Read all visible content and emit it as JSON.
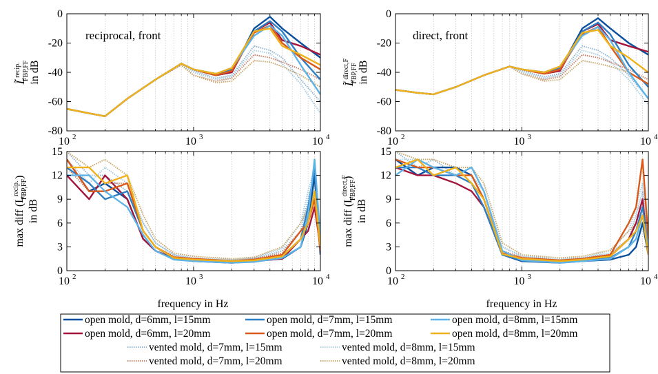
{
  "series_styles": [
    {
      "name": "open mold, d=6mm, l=15mm",
      "color": "#0b4f9c",
      "dash": "solid"
    },
    {
      "name": "open mold, d=7mm, l=15mm",
      "color": "#2f7fc4",
      "dash": "solid"
    },
    {
      "name": "open mold, d=8mm, l=15mm",
      "color": "#5fb3e6",
      "dash": "solid"
    },
    {
      "name": "open mold, d=6mm, l=20mm",
      "color": "#a3153b",
      "dash": "solid"
    },
    {
      "name": "open mold, d=7mm, l=20mm",
      "color": "#d95a1a",
      "dash": "solid"
    },
    {
      "name": "open mold, d=8mm, l=20mm",
      "color": "#f0b21c",
      "dash": "solid"
    },
    {
      "name": "vented mold, d=7mm, l=15mm",
      "color": "#8fb3d1",
      "dash": "dotted"
    },
    {
      "name": "vented mold, d=8mm, l=15mm",
      "color": "#a9cce3",
      "dash": "dotted"
    },
    {
      "name": "vented mold, d=7mm, l=20mm",
      "color": "#c9826b",
      "dash": "dotted"
    },
    {
      "name": "vented mold, d=8mm, l=20mm",
      "color": "#c9a86b",
      "dash": "dotted"
    }
  ],
  "legend_order": [
    0,
    1,
    2,
    3,
    4,
    5,
    6,
    7,
    8,
    9
  ],
  "xlabel": "frequency in Hz",
  "x_ticks": [
    {
      "v": 100,
      "base": "10",
      "exp": "2"
    },
    {
      "v": 1000,
      "base": "10",
      "exp": "3"
    },
    {
      "v": 10000,
      "base": "10",
      "exp": "4"
    }
  ],
  "chart_data": [
    {
      "type": "line",
      "id": "top-left",
      "xscale": "log",
      "xlim": [
        100,
        10000
      ],
      "ylim": [
        -80,
        0
      ],
      "yticks": [
        "0",
        "-20",
        "-40",
        "-60",
        "-80"
      ],
      "annotation": "reciprocal, front",
      "ylabel_line1": "L̃",
      "ylabel_sup": "recip.",
      "ylabel_sub": "FBP,FF",
      "ylabel_line2": "in dB",
      "x": [
        100,
        150,
        200,
        300,
        500,
        800,
        1000,
        1500,
        2000,
        3000,
        4000,
        5000,
        7000,
        10000
      ],
      "series": [
        {
          "values": [
            -65,
            -68,
            -70,
            -58,
            -45,
            -34,
            -38,
            -42,
            -40,
            -10,
            -2,
            -10,
            -20,
            -30
          ]
        },
        {
          "values": [
            -65,
            -68,
            -70,
            -58,
            -45,
            -34,
            -38,
            -41,
            -38,
            -12,
            -5,
            -12,
            -30,
            -45
          ]
        },
        {
          "values": [
            -65,
            -68,
            -70,
            -58,
            -45,
            -34,
            -38,
            -41,
            -37,
            -15,
            -8,
            -15,
            -35,
            -55
          ]
        },
        {
          "values": [
            -65,
            -68,
            -70,
            -58,
            -45,
            -34,
            -38,
            -42,
            -40,
            -12,
            -6,
            -18,
            -22,
            -28
          ]
        },
        {
          "values": [
            -65,
            -68,
            -70,
            -58,
            -45,
            -34,
            -38,
            -42,
            -39,
            -13,
            -8,
            -20,
            -30,
            -38
          ]
        },
        {
          "values": [
            -65,
            -68,
            -70,
            -58,
            -45,
            -34,
            -38,
            -41,
            -37,
            -12,
            -10,
            -22,
            -28,
            -35
          ]
        },
        {
          "values": [
            -65,
            -68,
            -70,
            -58,
            -45,
            -35,
            -39,
            -44,
            -42,
            -22,
            -25,
            -30,
            -45,
            -60
          ]
        },
        {
          "values": [
            -65,
            -68,
            -70,
            -58,
            -45,
            -35,
            -40,
            -45,
            -43,
            -25,
            -27,
            -34,
            -48,
            -68
          ]
        },
        {
          "values": [
            -65,
            -68,
            -70,
            -58,
            -45,
            -35,
            -42,
            -46,
            -44,
            -28,
            -30,
            -33,
            -38,
            -45
          ]
        },
        {
          "values": [
            -65,
            -68,
            -70,
            -58,
            -45,
            -35,
            -42,
            -47,
            -46,
            -32,
            -33,
            -36,
            -42,
            -50
          ]
        }
      ]
    },
    {
      "type": "line",
      "id": "top-right",
      "xscale": "log",
      "xlim": [
        100,
        10000
      ],
      "ylim": [
        -80,
        0
      ],
      "yticks": [
        "0",
        "-20",
        "-40",
        "-60",
        "-80"
      ],
      "annotation": "direct, front",
      "ylabel_line1": "L̃",
      "ylabel_sup": "direct,F",
      "ylabel_sub": "FBP,FF",
      "ylabel_line2": "in dB",
      "x": [
        100,
        150,
        200,
        300,
        500,
        800,
        1000,
        1500,
        2000,
        3000,
        4000,
        5000,
        7000,
        10000
      ],
      "series": [
        {
          "values": [
            -52,
            -54,
            -55,
            -50,
            -42,
            -36,
            -38,
            -40,
            -38,
            -10,
            -3,
            -10,
            -20,
            -28
          ]
        },
        {
          "values": [
            -52,
            -54,
            -55,
            -50,
            -42,
            -36,
            -38,
            -40,
            -37,
            -12,
            -6,
            -14,
            -35,
            -50
          ]
        },
        {
          "values": [
            -52,
            -54,
            -55,
            -50,
            -42,
            -36,
            -38,
            -40,
            -36,
            -15,
            -9,
            -18,
            -40,
            -58
          ]
        },
        {
          "values": [
            -52,
            -54,
            -55,
            -50,
            -42,
            -36,
            -38,
            -41,
            -39,
            -12,
            -7,
            -18,
            -22,
            -26
          ]
        },
        {
          "values": [
            -52,
            -54,
            -55,
            -50,
            -42,
            -36,
            -38,
            -41,
            -38,
            -14,
            -9,
            -22,
            -40,
            -48
          ]
        },
        {
          "values": [
            -52,
            -54,
            -55,
            -50,
            -42,
            -36,
            -38,
            -40,
            -36,
            -13,
            -11,
            -22,
            -30,
            -40
          ]
        },
        {
          "values": [
            -52,
            -54,
            -55,
            -50,
            -42,
            -36,
            -39,
            -43,
            -41,
            -22,
            -25,
            -30,
            -42,
            -58
          ]
        },
        {
          "values": [
            -52,
            -54,
            -55,
            -50,
            -42,
            -36,
            -40,
            -44,
            -42,
            -25,
            -28,
            -33,
            -45,
            -62
          ]
        },
        {
          "values": [
            -52,
            -54,
            -55,
            -50,
            -42,
            -36,
            -41,
            -45,
            -43,
            -28,
            -30,
            -33,
            -38,
            -45
          ]
        },
        {
          "values": [
            -52,
            -54,
            -55,
            -50,
            -42,
            -36,
            -41,
            -46,
            -45,
            -32,
            -34,
            -36,
            -40,
            -48
          ]
        }
      ]
    },
    {
      "type": "line",
      "id": "bottom-left",
      "xscale": "log",
      "xlim": [
        100,
        10000
      ],
      "ylim": [
        0,
        15
      ],
      "yticks": [
        "15",
        "12",
        "9",
        "6",
        "3",
        "0"
      ],
      "annotation": "",
      "ylabel_pre": "max diff (L",
      "ylabel_sup": "recip.",
      "ylabel_sub": "FBP,FF",
      "ylabel_post": ")",
      "ylabel_line2": "in dB",
      "x": [
        100,
        150,
        200,
        300,
        400,
        500,
        700,
        1000,
        2000,
        3000,
        5000,
        7000,
        8000,
        9000,
        10000
      ],
      "series": [
        {
          "values": [
            14,
            10,
            11,
            9,
            4,
            2.5,
            1.5,
            1.2,
            1.0,
            1.2,
            1.5,
            3,
            6,
            12,
            2
          ]
        },
        {
          "values": [
            13,
            11,
            9,
            10,
            5,
            3,
            1.5,
            1.3,
            1.1,
            1.3,
            1.8,
            4,
            8,
            13,
            3
          ]
        },
        {
          "values": [
            12,
            12,
            10,
            8,
            4.5,
            2.5,
            1.4,
            1.2,
            1.0,
            1.1,
            1.6,
            3,
            7,
            14,
            4
          ]
        },
        {
          "values": [
            12,
            9,
            12,
            9,
            4,
            2.5,
            1.6,
            1.3,
            1.0,
            1.2,
            1.5,
            4,
            5,
            8,
            3
          ]
        },
        {
          "values": [
            14,
            10,
            10,
            11,
            5,
            3,
            1.7,
            1.5,
            1.2,
            1.4,
            2.0,
            5,
            6,
            9,
            2.5
          ]
        },
        {
          "values": [
            13,
            13,
            11,
            12,
            5,
            3,
            1.6,
            1.4,
            1.2,
            1.3,
            1.8,
            4,
            6,
            10,
            3
          ]
        },
        {
          "values": [
            15,
            12,
            12,
            10,
            6,
            3.5,
            2,
            1.5,
            1.3,
            1.5,
            2.5,
            5,
            9,
            12,
            4
          ]
        },
        {
          "values": [
            14,
            11,
            13,
            11,
            6,
            3.5,
            2,
            1.6,
            1.4,
            1.6,
            2.8,
            6,
            10,
            13,
            5
          ]
        },
        {
          "values": [
            13,
            10,
            11,
            11,
            5,
            3,
            1.8,
            1.5,
            1.3,
            1.5,
            2.2,
            5,
            7,
            9,
            3.5
          ]
        },
        {
          "values": [
            15,
            13,
            14,
            12,
            7,
            4,
            2.2,
            1.8,
            1.5,
            1.7,
            3.0,
            6,
            8,
            11,
            4
          ]
        }
      ]
    },
    {
      "type": "line",
      "id": "bottom-right",
      "xscale": "log",
      "xlim": [
        100,
        10000
      ],
      "ylim": [
        0,
        15
      ],
      "yticks": [
        "15",
        "12",
        "9",
        "6",
        "3",
        "0"
      ],
      "annotation": "",
      "ylabel_pre": "max diff (L",
      "ylabel_sup": "direct,F",
      "ylabel_sub": "FBP,FF",
      "ylabel_post": ")",
      "ylabel_line2": "in dB",
      "x": [
        100,
        150,
        200,
        300,
        400,
        500,
        700,
        1000,
        2000,
        3000,
        5000,
        7000,
        8000,
        9000,
        10000
      ],
      "series": [
        {
          "values": [
            14,
            12,
            13,
            13,
            12,
            9,
            2,
            1.2,
            1.0,
            1.2,
            1.4,
            2,
            3,
            6,
            2
          ]
        },
        {
          "values": [
            13,
            13,
            12,
            12,
            11,
            8,
            2,
            1.3,
            1.1,
            1.2,
            1.6,
            3,
            5,
            8,
            3
          ]
        },
        {
          "values": [
            12,
            14,
            13,
            12,
            13,
            10,
            2.5,
            1.3,
            1.0,
            1.2,
            1.5,
            3,
            4,
            7,
            3
          ]
        },
        {
          "values": [
            13,
            12,
            12,
            11,
            10,
            8,
            2,
            1.4,
            1.1,
            1.3,
            1.8,
            4,
            6,
            9,
            2
          ]
        },
        {
          "values": [
            14,
            13,
            13,
            12,
            12,
            9,
            2.2,
            1.6,
            1.3,
            1.5,
            2.0,
            6,
            8,
            14,
            4
          ]
        },
        {
          "values": [
            13,
            14,
            12,
            13,
            11,
            9,
            2.1,
            1.5,
            1.2,
            1.4,
            1.8,
            4,
            5,
            7,
            2
          ]
        },
        {
          "values": [
            15,
            13,
            14,
            12,
            12,
            10,
            3,
            1.8,
            1.4,
            1.6,
            2.2,
            4,
            7,
            10,
            3
          ]
        },
        {
          "values": [
            14,
            14,
            13,
            13,
            12,
            10,
            3,
            1.9,
            1.5,
            1.7,
            2.5,
            5,
            8,
            11,
            4
          ]
        },
        {
          "values": [
            13,
            12,
            13,
            12,
            11,
            9,
            2.5,
            1.7,
            1.3,
            1.5,
            2.0,
            4,
            5,
            8,
            3
          ]
        },
        {
          "values": [
            15,
            14,
            14,
            13,
            13,
            11,
            3.5,
            2.0,
            1.6,
            1.8,
            2.6,
            5,
            6,
            9,
            3
          ]
        }
      ]
    }
  ]
}
